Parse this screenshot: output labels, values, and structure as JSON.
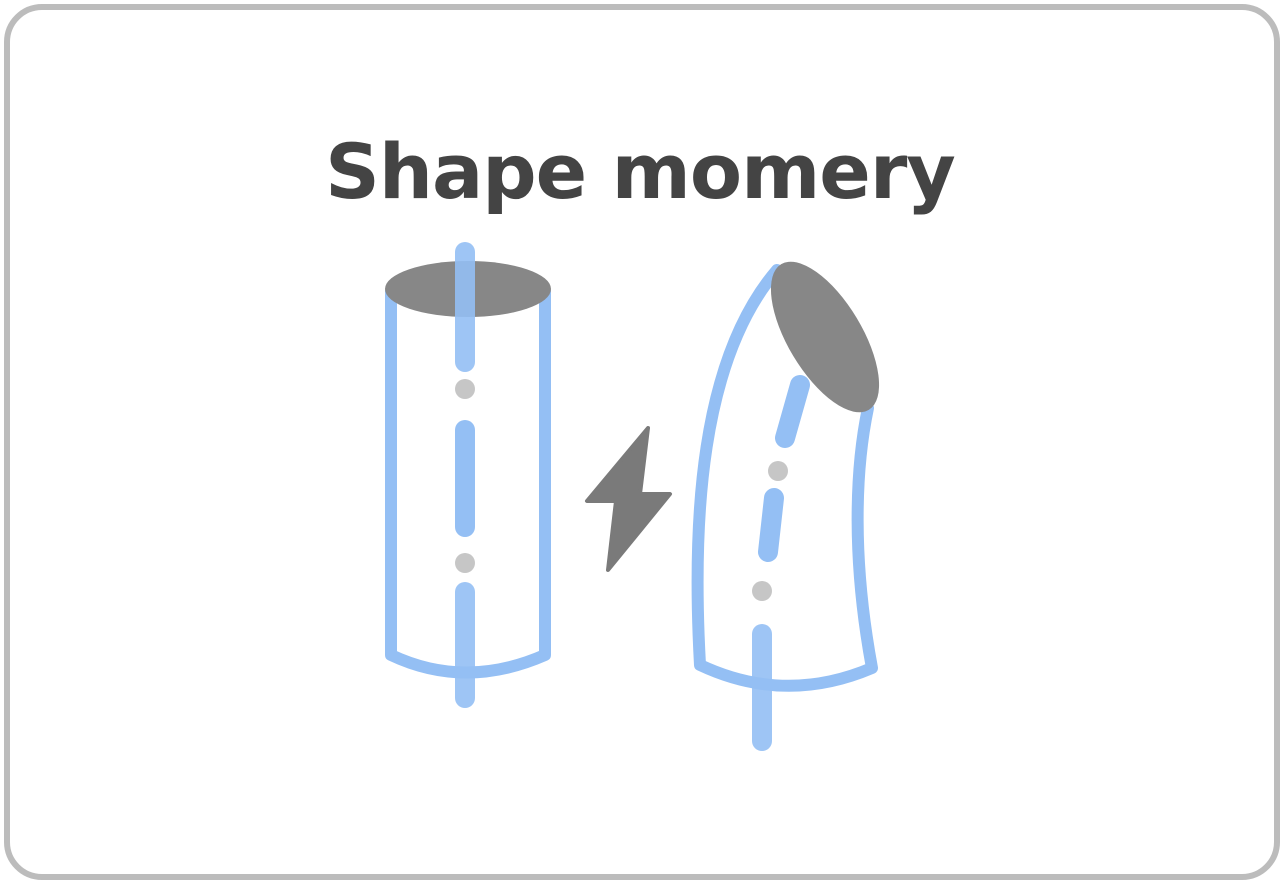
{
  "title": "Shape momery",
  "colors": {
    "outline": "#94bff4",
    "cap": "#878787",
    "dot": "#c6c6c6",
    "bolt": "#7a7a7a",
    "text": "#444444",
    "border": "#bcbcbc"
  },
  "icons": {
    "straight_cylinder": "cylinder-icon",
    "bolt": "lightning-bolt-icon",
    "bent_cylinder": "bent-cylinder-icon"
  }
}
